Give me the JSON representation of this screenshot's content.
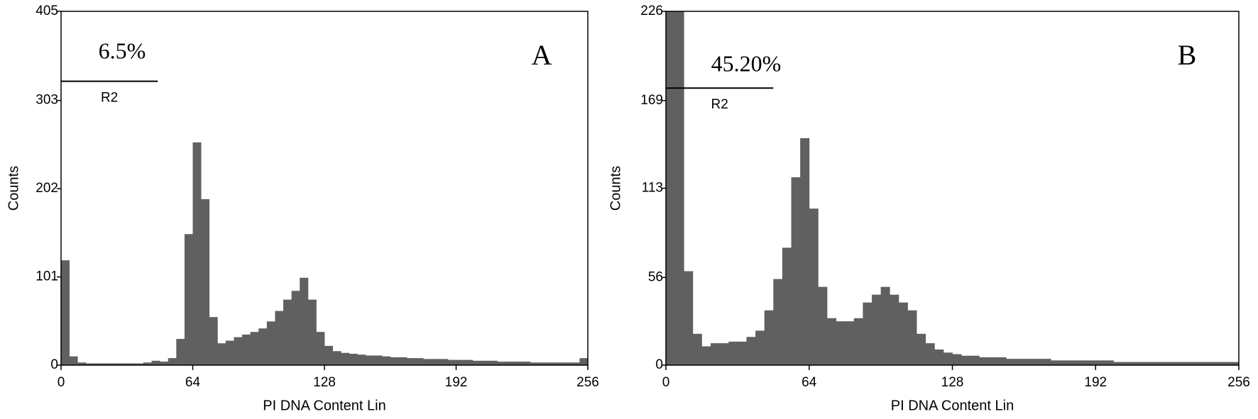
{
  "chart_data": [
    {
      "type": "histogram",
      "panel_label": "A",
      "x_label": "PI DNA Content Lin",
      "y_label": "Counts",
      "color": "#606060",
      "bins": [
        0,
        4,
        8,
        12,
        16,
        20,
        24,
        28,
        32,
        36,
        40,
        44,
        48,
        52,
        56,
        60,
        64,
        68,
        72,
        76,
        80,
        84,
        88,
        92,
        96,
        100,
        104,
        108,
        112,
        116,
        120,
        124,
        128,
        132,
        136,
        140,
        144,
        148,
        152,
        156,
        160,
        164,
        168,
        172,
        176,
        180,
        184,
        188,
        192,
        196,
        200,
        204,
        208,
        212,
        216,
        220,
        224,
        228,
        232,
        236,
        240,
        244,
        248,
        252,
        256
      ],
      "values": [
        120,
        10,
        3,
        2,
        2,
        2,
        2,
        2,
        2,
        2,
        3,
        5,
        4,
        8,
        30,
        150,
        255,
        190,
        55,
        25,
        28,
        32,
        35,
        38,
        42,
        50,
        62,
        75,
        85,
        100,
        75,
        38,
        22,
        16,
        14,
        13,
        12,
        11,
        11,
        10,
        9,
        9,
        8,
        8,
        7,
        7,
        7,
        6,
        6,
        6,
        5,
        5,
        5,
        4,
        4,
        4,
        4,
        3,
        3,
        3,
        3,
        3,
        3,
        8
      ],
      "xlim": [
        0,
        256
      ],
      "xticks": [
        0,
        64,
        128,
        192,
        256
      ],
      "ylim": [
        0,
        405
      ],
      "yticks": [
        0,
        101,
        202,
        303,
        405
      ],
      "gate": {
        "label": "R2",
        "percent": "6.5%",
        "x": [
          0,
          47
        ],
        "y": 325
      }
    },
    {
      "type": "histogram",
      "panel_label": "B",
      "x_label": "PI DNA Content Lin",
      "y_label": "Counts",
      "color": "#606060",
      "bins": [
        0,
        4,
        8,
        12,
        16,
        20,
        24,
        28,
        32,
        36,
        40,
        44,
        48,
        52,
        56,
        60,
        64,
        68,
        72,
        76,
        80,
        84,
        88,
        92,
        96,
        100,
        104,
        108,
        112,
        116,
        120,
        124,
        128,
        132,
        136,
        140,
        144,
        148,
        152,
        156,
        160,
        164,
        168,
        172,
        176,
        180,
        184,
        188,
        192,
        196,
        200,
        204,
        208,
        212,
        216,
        220,
        224,
        228,
        232,
        236,
        240,
        244,
        248,
        252,
        256
      ],
      "values": [
        230,
        230,
        60,
        20,
        12,
        14,
        14,
        15,
        15,
        18,
        22,
        35,
        55,
        75,
        120,
        145,
        100,
        50,
        30,
        28,
        28,
        30,
        40,
        45,
        50,
        45,
        40,
        35,
        20,
        14,
        10,
        8,
        7,
        6,
        6,
        5,
        5,
        5,
        4,
        4,
        4,
        4,
        4,
        3,
        3,
        3,
        3,
        3,
        3,
        3,
        2,
        2,
        2,
        2,
        2,
        2,
        2,
        2,
        2,
        2,
        2,
        2,
        2,
        2
      ],
      "xlim": [
        0,
        256
      ],
      "xticks": [
        0,
        64,
        128,
        192,
        256
      ],
      "ylim": [
        0,
        226
      ],
      "yticks": [
        0,
        56,
        113,
        169,
        226
      ],
      "gate": {
        "label": "R2",
        "percent": "45.20%",
        "x": [
          0,
          48
        ],
        "y": 177
      }
    }
  ]
}
